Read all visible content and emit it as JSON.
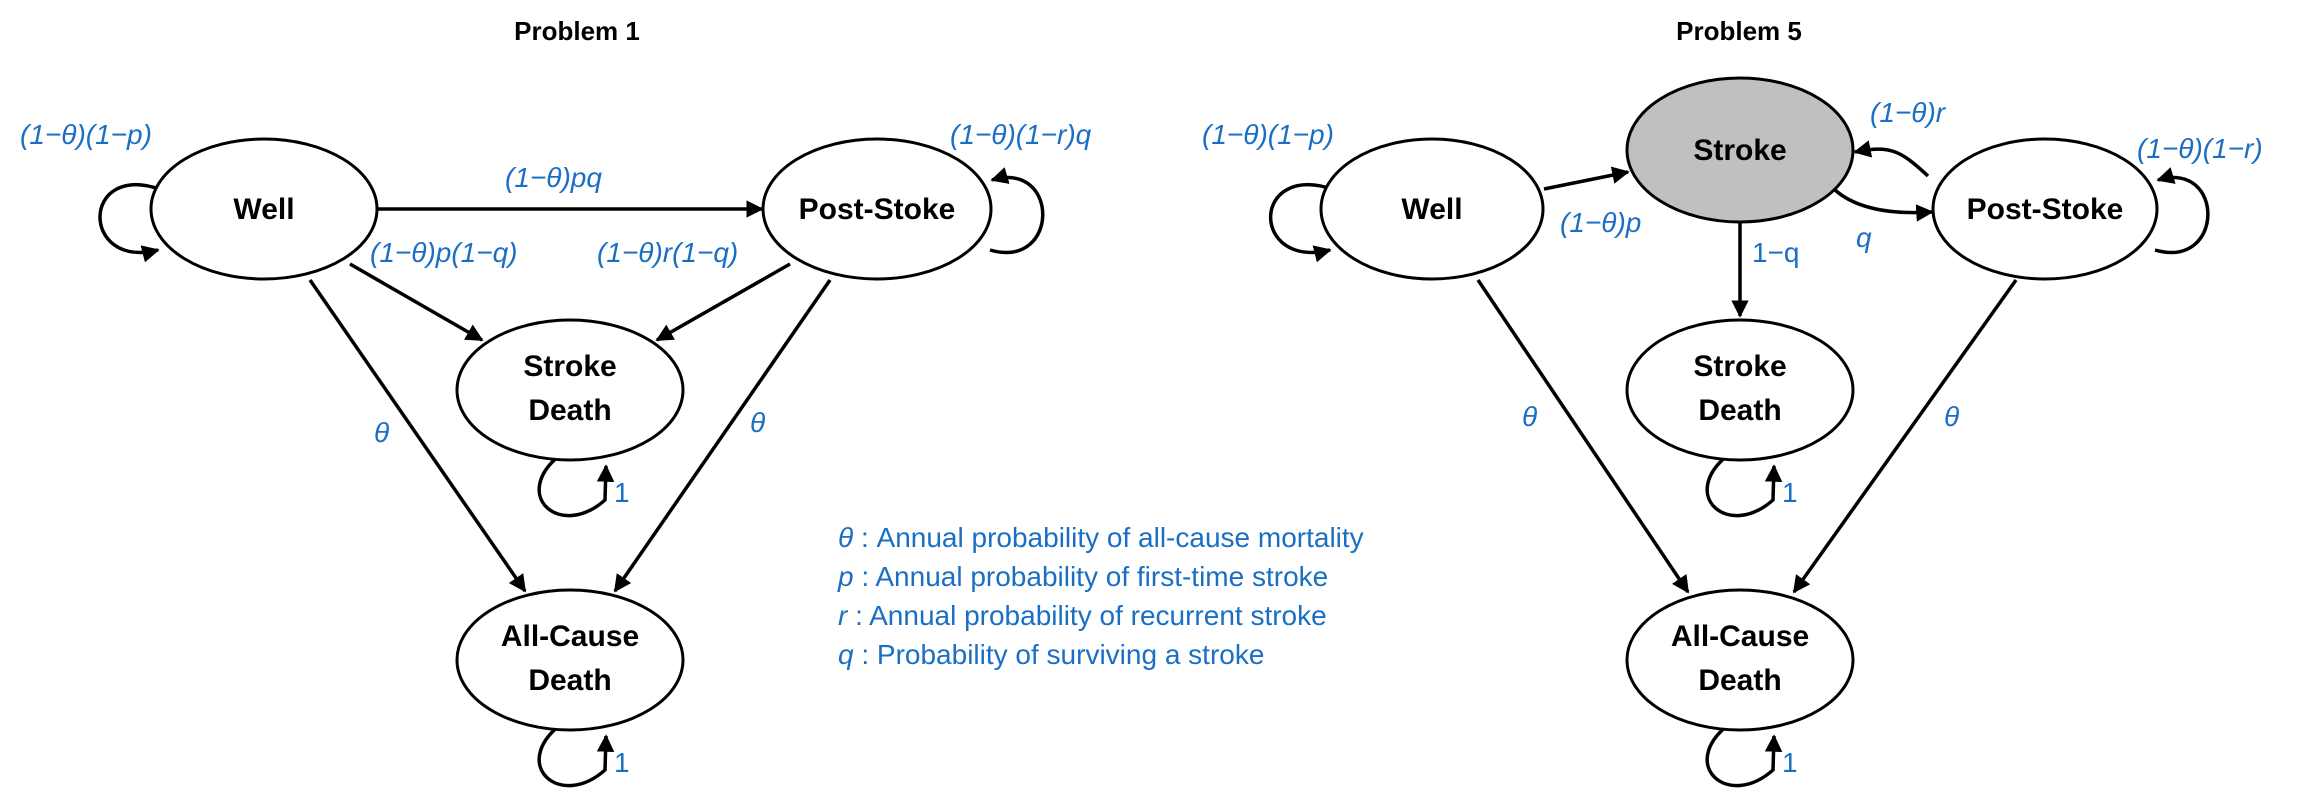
{
  "colors": {
    "label_blue": "#1a6fc4",
    "shaded_node": "#c0c0c0",
    "stroke": "#000000"
  },
  "problem1": {
    "title": "Problem 1",
    "nodes": {
      "well": "Well",
      "post_stroke": "Post-Stoke",
      "stroke_death_1": "Stroke",
      "stroke_death_2": "Death",
      "all_cause_1": "All-Cause",
      "all_cause_2": "Death"
    },
    "edges": {
      "well_self": "(1−θ)(1−p)",
      "well_to_post": "(1−θ)pq",
      "post_self": "(1−θ)(1−r)q",
      "well_to_strokedeath": "(1−θ)p(1−q)",
      "post_to_strokedeath": "(1−θ)r(1−q)",
      "well_to_allcause": "θ",
      "post_to_allcause": "θ",
      "strokedeath_self": "1",
      "allcause_self": "1"
    }
  },
  "problem5": {
    "title": "Problem 5",
    "nodes": {
      "well": "Well",
      "stroke": "Stroke",
      "post_stroke": "Post-Stoke",
      "stroke_death_1": "Stroke",
      "stroke_death_2": "Death",
      "all_cause_1": "All-Cause",
      "all_cause_2": "Death"
    },
    "edges": {
      "well_self": "(1−θ)(1−p)",
      "well_to_stroke": "(1−θ)p",
      "post_to_stroke": "(1−θ)r",
      "post_self": "(1−θ)(1−r)",
      "stroke_to_post": "q",
      "stroke_to_strokedeath": "1−q",
      "well_to_allcause": "θ",
      "post_to_allcause": "θ",
      "strokedeath_self": "1",
      "allcause_self": "1"
    }
  },
  "legend": {
    "theta_sym": "θ",
    "theta_text": " : Annual probability of all-cause mortality",
    "p_sym": "p",
    "p_text": " : Annual probability of first-time stroke",
    "r_sym": "r",
    "r_text": " : Annual probability of recurrent stroke",
    "q_sym": "q",
    "q_text": " : Probability of surviving a stroke"
  }
}
